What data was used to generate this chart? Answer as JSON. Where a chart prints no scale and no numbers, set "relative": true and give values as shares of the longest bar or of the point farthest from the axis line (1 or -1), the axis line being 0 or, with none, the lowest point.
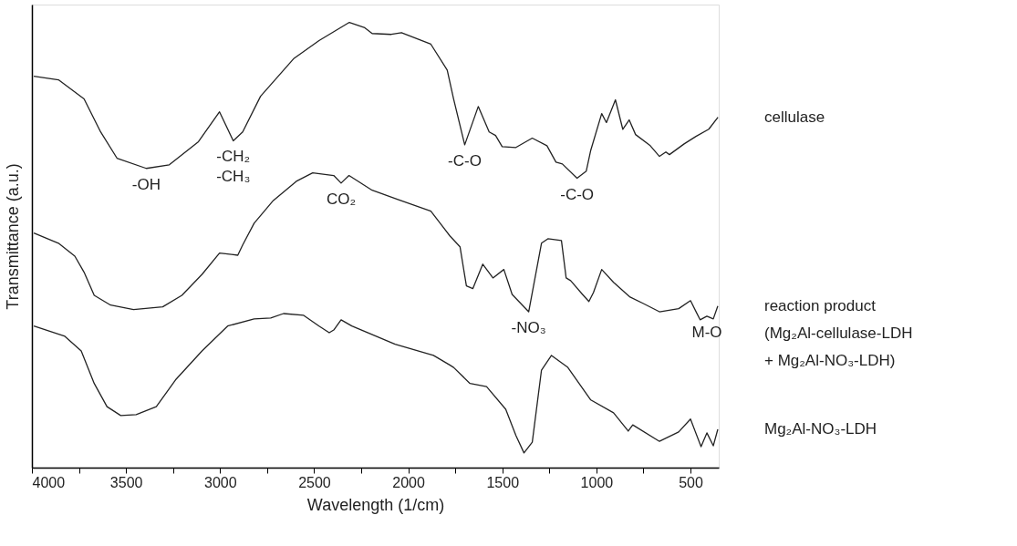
{
  "chart_data": {
    "type": "line",
    "relative": true,
    "xlabel": "Wavelength (1/cm)",
    "ylabel": "Transmittance (a.u.)",
    "xlim": [
      4000,
      350
    ],
    "xticks": [
      4000,
      {
        "value": 3750,
        "label": null
      },
      3500,
      {
        "value": 3250,
        "label": null
      },
      3000,
      {
        "value": 2750,
        "label": null
      },
      2500,
      {
        "value": 2250,
        "label": null
      },
      2000,
      {
        "value": 1750,
        "label": null
      },
      1500,
      {
        "value": 1250,
        "label": null
      },
      1000,
      {
        "value": 750,
        "label": null
      },
      500
    ],
    "grid": false,
    "legend": false,
    "line_style": "solid",
    "marker": "none",
    "series": [
      {
        "name": "cellulase",
        "color": "#222222",
        "x": [
          3990,
          3859,
          3723,
          3635,
          3548,
          3392,
          3270,
          3115,
          3003,
          2930,
          2880,
          2785,
          2610,
          2474,
          2313,
          2231,
          2192,
          2090,
          2036,
          1880,
          1793,
          1759,
          1700,
          1628,
          1570,
          1536,
          1501,
          1428,
          1341,
          1263,
          1215,
          1181,
          1103,
          1054,
          1030,
          972,
          947,
          899,
          860,
          826,
          792,
          714,
          665,
          631,
          612,
          534,
          471,
          403,
          354
        ],
        "values": [
          0.879,
          0.871,
          0.828,
          0.754,
          0.695,
          0.672,
          0.68,
          0.732,
          0.799,
          0.734,
          0.754,
          0.834,
          0.918,
          0.959,
          1.0,
          0.988,
          0.975,
          0.973,
          0.977,
          0.951,
          0.893,
          0.828,
          0.725,
          0.811,
          0.754,
          0.746,
          0.721,
          0.719,
          0.74,
          0.723,
          0.686,
          0.682,
          0.65,
          0.666,
          0.713,
          0.795,
          0.775,
          0.826,
          0.76,
          0.781,
          0.748,
          0.723,
          0.699,
          0.709,
          0.703,
          0.727,
          0.744,
          0.76,
          0.787
        ]
      },
      {
        "name": "reaction product\n(Mg₂Al-cellulase-LDH\n+ Mg₂Al-NO₃-LDH)",
        "color": "#222222",
        "x": [
          3990,
          3859,
          3772,
          3723,
          3669,
          3582,
          3460,
          3305,
          3203,
          3096,
          3003,
          2906,
          2880,
          2819,
          2717,
          2595,
          2508,
          2396,
          2357,
          2315,
          2192,
          2055,
          1880,
          1778,
          1725,
          1691,
          1657,
          1604,
          1550,
          1492,
          1448,
          1360,
          1292,
          1258,
          1186,
          1161,
          1137,
          1074,
          1040,
          1016,
          972,
          909,
          821,
          753,
          665,
          563,
          500,
          449,
          413,
          379,
          355
        ],
        "values": [
          0.527,
          0.504,
          0.475,
          0.439,
          0.387,
          0.365,
          0.355,
          0.361,
          0.387,
          0.434,
          0.482,
          0.477,
          0.5,
          0.549,
          0.6,
          0.643,
          0.662,
          0.656,
          0.639,
          0.656,
          0.623,
          0.602,
          0.576,
          0.52,
          0.496,
          0.408,
          0.402,
          0.457,
          0.426,
          0.445,
          0.389,
          0.35,
          0.504,
          0.514,
          0.51,
          0.426,
          0.42,
          0.389,
          0.373,
          0.393,
          0.445,
          0.416,
          0.383,
          0.369,
          0.35,
          0.357,
          0.375,
          0.332,
          0.34,
          0.334,
          0.363
        ]
      },
      {
        "name": "Mg₂Al-NO₃-LDH",
        "color": "#222222",
        "x": [
          3990,
          3825,
          3738,
          3669,
          3601,
          3528,
          3446,
          3339,
          3237,
          3096,
          2960,
          2819,
          2731,
          2663,
          2556,
          2474,
          2420,
          2396,
          2357,
          2300,
          2070,
          1866,
          1778,
          1759,
          1672,
          1584,
          1482,
          1428,
          1385,
          1341,
          1292,
          1239,
          1152,
          1030,
          909,
          831,
          807,
          665,
          563,
          500,
          444,
          413,
          379,
          355
        ],
        "values": [
          0.318,
          0.295,
          0.262,
          0.189,
          0.137,
          0.117,
          0.119,
          0.137,
          0.197,
          0.262,
          0.318,
          0.334,
          0.336,
          0.346,
          0.342,
          0.318,
          0.303,
          0.309,
          0.332,
          0.318,
          0.277,
          0.252,
          0.23,
          0.225,
          0.189,
          0.182,
          0.131,
          0.072,
          0.033,
          0.057,
          0.219,
          0.252,
          0.225,
          0.152,
          0.123,
          0.082,
          0.096,
          0.059,
          0.08,
          0.109,
          0.047,
          0.078,
          0.049,
          0.086
        ]
      }
    ],
    "annotations": [
      {
        "text": "-OH",
        "x": 3392,
        "y": 0.672
      },
      {
        "text": "-CH₂\n-CH₃",
        "x": 2930,
        "y": 0.734
      },
      {
        "text": "CO₂",
        "x": 2357,
        "y": 0.639
      },
      {
        "text": "-C-O",
        "x": 1700,
        "y": 0.725
      },
      {
        "text": "-C-O",
        "x": 1103,
        "y": 0.65
      },
      {
        "text": "-NO₃",
        "x": 1360,
        "y": 0.35
      },
      {
        "text": "M-O",
        "x": 413,
        "y": 0.34
      }
    ]
  }
}
